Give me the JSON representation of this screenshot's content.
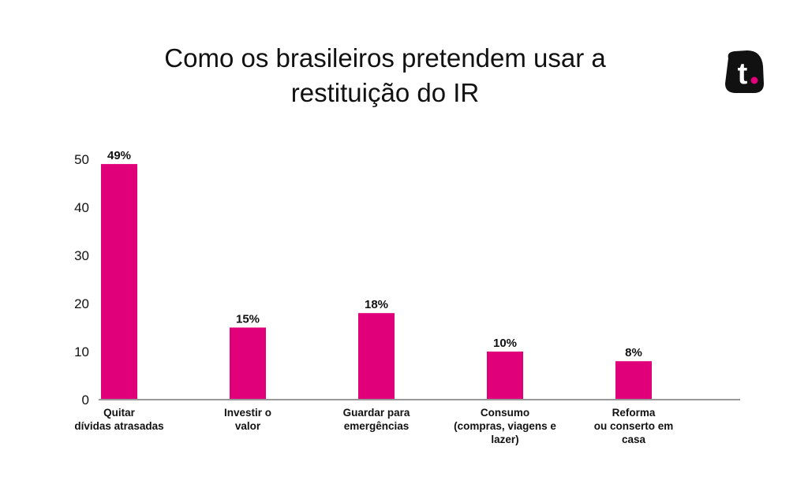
{
  "title_lines": [
    "Como os brasileiros pretendem usar a",
    "restituição do IR"
  ],
  "logo": {
    "glyph": "t",
    "icon": "brand-logo-icon",
    "bg_color": "#111111",
    "dot_color": "#e0007a"
  },
  "chart_data": {
    "type": "bar",
    "title": "Como os brasileiros pretendem usar a restituição do IR",
    "categories": [
      [
        "Quitar",
        "dívidas atrasadas"
      ],
      [
        "Investir o",
        "valor"
      ],
      [
        "Guardar para",
        "emergências"
      ],
      [
        "Consumo",
        "(compras, viagens e",
        "lazer)"
      ],
      [
        "Reforma",
        "ou conserto em",
        "casa"
      ]
    ],
    "values": [
      49,
      15,
      18,
      10,
      8
    ],
    "data_labels": [
      "49%",
      "15%",
      "18%",
      "10%",
      "8%"
    ],
    "yticks": [
      0,
      10,
      20,
      30,
      40,
      50
    ],
    "ylim": [
      0,
      50
    ],
    "grid": false,
    "bar_color": "#e0007a",
    "axis_color": "#999999"
  }
}
